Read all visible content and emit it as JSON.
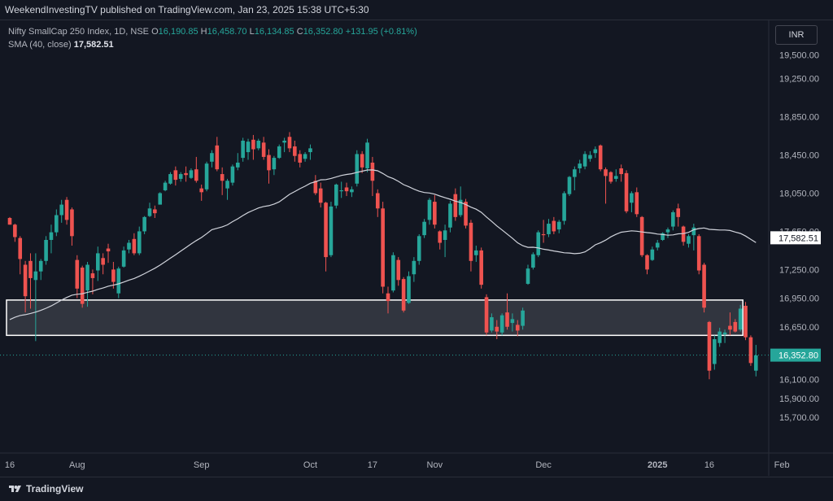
{
  "header": {
    "publish_line": "WeekendInvestingTV published on TradingView.com, Jan 23, 2025 15:38 UTC+5:30"
  },
  "legend": {
    "symbol": "Nifty SmallCap 250 Index, 1D, NSE",
    "o_label": "O",
    "o_value": "16,190.85",
    "h_label": "H",
    "h_value": "16,458.70",
    "l_label": "L",
    "l_value": "16,134.85",
    "c_label": "C",
    "c_value": "16,352.80",
    "change": "+131.95 (+0.81%)",
    "sma_label": "SMA (40, close)",
    "sma_value": "17,582.51"
  },
  "currency_button": "INR",
  "footer": {
    "brand": "TradingView"
  },
  "colors": {
    "up": "#26a69a",
    "down": "#ef5350",
    "sma": "#d1d4dc",
    "background": "#131722",
    "price_tag": "#26a69a",
    "zone_border": "#ffffff"
  },
  "chart_data": {
    "type": "candlestick",
    "y_ticks": [
      "19,500.00",
      "19,250.00",
      "18,850.00",
      "18,450.00",
      "18,050.00",
      "17,650.00",
      "17,250.00",
      "16,950.00",
      "16,650.00",
      "16,100.00",
      "15,900.00",
      "15,700.00"
    ],
    "y_tick_values": [
      19500,
      19250,
      18850,
      18450,
      18050,
      17650,
      17250,
      16950,
      16650,
      16100,
      15900,
      15700
    ],
    "ylim": [
      15540,
      19580
    ],
    "x_ticks": [
      "16",
      "Aug",
      "Sep",
      "Oct",
      "17",
      "Nov",
      "Dec",
      "2025",
      "16",
      "Feb"
    ],
    "x_tick_bars": [
      0,
      13,
      37,
      58,
      70,
      82,
      103,
      125,
      135,
      149
    ],
    "current_price": 16352.8,
    "current_price_label": "16,352.80",
    "sma_label_value": "17,582.51",
    "support_zone": {
      "low": 16560,
      "high": 16930,
      "start_bar": 0,
      "end_bar": 141
    },
    "candles": [
      [
        17790,
        17800,
        17720,
        17720
      ],
      [
        17720,
        17730,
        17540,
        17590
      ],
      [
        17580,
        17600,
        17200,
        17360
      ],
      [
        17300,
        17340,
        16800,
        16970
      ],
      [
        17340,
        17420,
        16840,
        17160
      ],
      [
        17140,
        17420,
        16500,
        17230
      ],
      [
        17230,
        17360,
        17140,
        17340
      ],
      [
        17340,
        17600,
        17300,
        17560
      ],
      [
        17560,
        17720,
        17420,
        17640
      ],
      [
        17640,
        17880,
        17600,
        17820
      ],
      [
        17820,
        17980,
        17740,
        17930
      ],
      [
        17980,
        18010,
        17720,
        17770
      ],
      [
        17880,
        17900,
        17500,
        17600
      ],
      [
        17350,
        17400,
        16950,
        17050
      ],
      [
        17270,
        17290,
        16850,
        16890
      ],
      [
        17030,
        17330,
        16860,
        17300
      ],
      [
        17210,
        17250,
        16990,
        17160
      ],
      [
        17240,
        17490,
        17130,
        17420
      ],
      [
        17370,
        17420,
        17200,
        17300
      ],
      [
        17470,
        17520,
        17320,
        17440
      ],
      [
        17250,
        17330,
        17050,
        17120
      ],
      [
        17000,
        17280,
        16950,
        17260
      ],
      [
        17280,
        17490,
        17270,
        17450
      ],
      [
        17460,
        17560,
        17420,
        17530
      ],
      [
        17570,
        17630,
        17400,
        17420
      ],
      [
        17420,
        17700,
        17400,
        17650
      ],
      [
        17650,
        17810,
        17620,
        17800
      ],
      [
        17810,
        17950,
        17800,
        17890
      ],
      [
        17880,
        17920,
        17790,
        17840
      ],
      [
        17930,
        18060,
        17930,
        18050
      ],
      [
        18080,
        18180,
        18070,
        18160
      ],
      [
        18150,
        18270,
        18140,
        18250
      ],
      [
        18290,
        18330,
        18130,
        18190
      ],
      [
        18200,
        18270,
        18170,
        18250
      ],
      [
        18260,
        18330,
        18170,
        18240
      ],
      [
        18210,
        18310,
        18200,
        18290
      ],
      [
        18300,
        18430,
        18160,
        18180
      ],
      [
        18100,
        18140,
        17970,
        18060
      ],
      [
        18090,
        18380,
        18070,
        18360
      ],
      [
        18380,
        18500,
        18320,
        18470
      ],
      [
        18550,
        18640,
        18280,
        18300
      ],
      [
        18250,
        18320,
        18030,
        18180
      ],
      [
        18100,
        18200,
        17980,
        18180
      ],
      [
        18160,
        18350,
        18130,
        18330
      ],
      [
        18320,
        18470,
        18290,
        18370
      ],
      [
        18420,
        18630,
        18380,
        18600
      ],
      [
        18480,
        18620,
        18400,
        18590
      ],
      [
        18610,
        18660,
        18400,
        18510
      ],
      [
        18520,
        18620,
        18500,
        18600
      ],
      [
        18580,
        18640,
        18400,
        18430
      ],
      [
        18450,
        18510,
        18150,
        18290
      ],
      [
        18300,
        18440,
        18240,
        18420
      ],
      [
        18420,
        18560,
        18410,
        18540
      ],
      [
        18580,
        18630,
        18480,
        18600
      ],
      [
        18640,
        18690,
        18480,
        18520
      ],
      [
        18540,
        18600,
        18380,
        18440
      ],
      [
        18460,
        18500,
        18320,
        18370
      ],
      [
        18410,
        18480,
        18380,
        18460
      ],
      [
        18480,
        18560,
        18400,
        18520
      ],
      [
        18180,
        18240,
        18030,
        18050
      ],
      [
        18100,
        18160,
        17900,
        17950
      ],
      [
        17950,
        17960,
        17230,
        17380
      ],
      [
        17400,
        17960,
        17380,
        17910
      ],
      [
        17920,
        18150,
        17890,
        18140
      ],
      [
        18070,
        18170,
        18000,
        18080
      ],
      [
        18110,
        18160,
        18020,
        18070
      ],
      [
        18060,
        18120,
        18010,
        18090
      ],
      [
        18150,
        18500,
        18120,
        18460
      ],
      [
        18460,
        18490,
        18260,
        18320
      ],
      [
        18310,
        18620,
        18270,
        18580
      ],
      [
        18370,
        18430,
        18020,
        18180
      ],
      [
        18050,
        18090,
        17800,
        17890
      ],
      [
        17890,
        17960,
        17000,
        17070
      ],
      [
        17000,
        17070,
        16790,
        16920
      ],
      [
        17030,
        17430,
        17010,
        17400
      ],
      [
        17350,
        17380,
        17080,
        17140
      ],
      [
        17150,
        17170,
        16800,
        16820
      ],
      [
        16900,
        17230,
        16890,
        17180
      ],
      [
        17200,
        17380,
        17120,
        17340
      ],
      [
        17340,
        17620,
        17300,
        17600
      ],
      [
        17610,
        17780,
        17580,
        17750
      ],
      [
        17770,
        18000,
        17720,
        17980
      ],
      [
        17960,
        18030,
        17680,
        17720
      ],
      [
        17650,
        17660,
        17460,
        17530
      ],
      [
        17560,
        17720,
        17380,
        17660
      ],
      [
        17690,
        17970,
        17640,
        17940
      ],
      [
        18040,
        18100,
        17760,
        17800
      ],
      [
        17820,
        18120,
        17800,
        17980
      ],
      [
        17960,
        17990,
        17680,
        17710
      ],
      [
        17740,
        17770,
        17230,
        17340
      ],
      [
        17400,
        17500,
        17330,
        17450
      ],
      [
        17450,
        17480,
        17050,
        17090
      ],
      [
        16960,
        16990,
        16560,
        16590
      ],
      [
        16610,
        16790,
        16590,
        16750
      ],
      [
        16650,
        16720,
        16520,
        16600
      ],
      [
        16590,
        16790,
        16560,
        16770
      ],
      [
        16800,
        17000,
        16620,
        16650
      ],
      [
        16690,
        16790,
        16600,
        16730
      ],
      [
        16670,
        16720,
        16550,
        16610
      ],
      [
        16660,
        16850,
        16620,
        16820
      ],
      [
        17100,
        17300,
        17090,
        17260
      ],
      [
        17270,
        17430,
        17250,
        17410
      ],
      [
        17400,
        17660,
        17380,
        17640
      ],
      [
        17620,
        17770,
        17530,
        17610
      ],
      [
        17620,
        17780,
        17590,
        17730
      ],
      [
        17760,
        17800,
        17620,
        17650
      ],
      [
        17670,
        17770,
        17630,
        17750
      ],
      [
        17760,
        18070,
        17720,
        18050
      ],
      [
        18040,
        18230,
        18020,
        18220
      ],
      [
        18220,
        18330,
        18080,
        18300
      ],
      [
        18310,
        18400,
        18260,
        18360
      ],
      [
        18330,
        18490,
        18300,
        18460
      ],
      [
        18410,
        18490,
        18380,
        18450
      ],
      [
        18470,
        18540,
        18420,
        18510
      ],
      [
        18550,
        18560,
        18280,
        18300
      ],
      [
        18300,
        18320,
        17940,
        18230
      ],
      [
        18270,
        18280,
        18150,
        18170
      ],
      [
        18200,
        18300,
        18170,
        18230
      ],
      [
        18310,
        18350,
        18170,
        18250
      ],
      [
        18260,
        18290,
        17840,
        17860
      ],
      [
        17950,
        18070,
        17850,
        18050
      ],
      [
        18060,
        18110,
        17800,
        17830
      ],
      [
        17800,
        17810,
        17380,
        17400
      ],
      [
        17400,
        17410,
        17200,
        17250
      ],
      [
        17350,
        17490,
        17340,
        17460
      ],
      [
        17480,
        17560,
        17450,
        17530
      ],
      [
        17560,
        17640,
        17550,
        17630
      ],
      [
        17640,
        17690,
        17580,
        17670
      ],
      [
        17700,
        17870,
        17660,
        17850
      ],
      [
        17890,
        17940,
        17700,
        17800
      ],
      [
        17700,
        17710,
        17500,
        17540
      ],
      [
        17520,
        17620,
        17480,
        17600
      ],
      [
        17610,
        17730,
        17450,
        17690
      ],
      [
        17600,
        17620,
        17200,
        17240
      ],
      [
        17300,
        17320,
        16800,
        16850
      ],
      [
        16700,
        16710,
        16100,
        16190
      ],
      [
        16260,
        16560,
        16200,
        16520
      ],
      [
        16480,
        16640,
        16440,
        16600
      ],
      [
        16570,
        16620,
        16480,
        16590
      ],
      [
        16660,
        16800,
        16560,
        16620
      ],
      [
        16700,
        16730,
        16590,
        16600
      ],
      [
        16620,
        16880,
        16600,
        16840
      ],
      [
        16870,
        16910,
        16510,
        16540
      ],
      [
        16540,
        16560,
        16240,
        16270
      ],
      [
        16190,
        16460,
        16130,
        16350
      ]
    ]
  }
}
